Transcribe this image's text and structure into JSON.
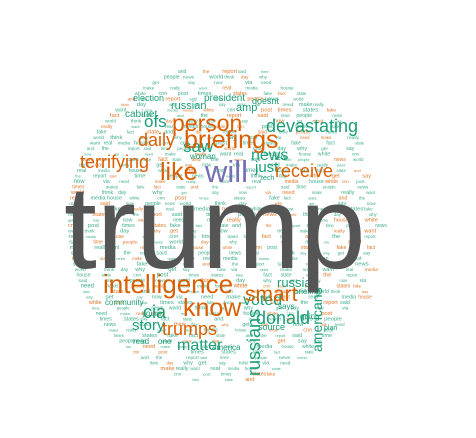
{
  "palette": {
    "big": "#555555",
    "orange": "#d95f02",
    "teal": "#1b9e77",
    "purple": "#7570b3"
  },
  "words": [
    {
      "text": "trump",
      "color": "big"
    },
    {
      "text": "will",
      "color": "purple"
    },
    {
      "text": "intelligence",
      "color": "orange"
    },
    {
      "text": "briefings",
      "color": "orange"
    },
    {
      "text": "know",
      "color": "orange"
    },
    {
      "text": "like",
      "color": "orange"
    },
    {
      "text": "person",
      "color": "orange"
    },
    {
      "text": "daily",
      "color": "orange"
    },
    {
      "text": "terrifying",
      "color": "orange"
    },
    {
      "text": "receive",
      "color": "orange"
    },
    {
      "text": "smart",
      "color": "orange"
    },
    {
      "text": "trumps",
      "color": "orange"
    },
    {
      "text": "donald",
      "color": "teal"
    },
    {
      "text": "story",
      "color": "teal"
    },
    {
      "text": "matter",
      "color": "teal"
    },
    {
      "text": "voted",
      "color": "teal"
    },
    {
      "text": "russians",
      "color": "teal"
    },
    {
      "text": "americans",
      "color": "teal"
    },
    {
      "text": "devastating",
      "color": "teal"
    },
    {
      "text": "cia",
      "color": "teal"
    },
    {
      "text": "russia",
      "color": "teal"
    },
    {
      "text": "saw",
      "color": "teal"
    },
    {
      "text": "ofs",
      "color": "teal"
    },
    {
      "text": "news",
      "color": "teal"
    },
    {
      "text": "just",
      "color": "teal"
    },
    {
      "text": "president",
      "color": "teal"
    },
    {
      "text": "cabinet",
      "color": "teal"
    },
    {
      "text": "russian",
      "color": "teal"
    },
    {
      "text": "election",
      "color": "teal"
    },
    {
      "text": "amp",
      "color": "teal"
    },
    {
      "text": "doesnt",
      "color": "teal"
    },
    {
      "text": "woman",
      "color": "teal"
    },
    {
      "text": "briefing",
      "color": "teal"
    },
    {
      "text": "source",
      "color": "teal"
    },
    {
      "text": "community",
      "color": "teal"
    },
    {
      "text": "america",
      "color": "teal"
    },
    {
      "text": "youre",
      "color": "teal"
    },
    {
      "text": "says",
      "color": "teal"
    },
    {
      "text": "read",
      "color": "teal"
    },
    {
      "text": "one",
      "color": "teal"
    },
    {
      "text": "going",
      "color": "teal"
    },
    {
      "text": "tech",
      "color": "teal"
    },
    {
      "text": "new",
      "color": "teal"
    },
    {
      "text": "plan",
      "color": "teal"
    }
  ]
}
